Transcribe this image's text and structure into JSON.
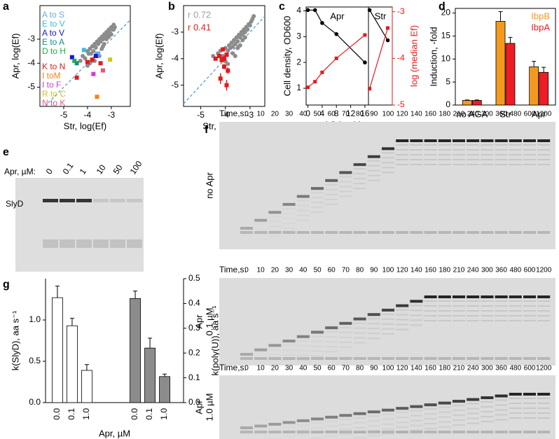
{
  "chart_data": [
    {
      "panel": "a",
      "type": "scatter",
      "xlabel": "Str, log(Ef)",
      "ylabel": "Apr, log(Ef)",
      "xlim": [
        -6,
        -2.2
      ],
      "ylim": [
        -5.8,
        -1.6
      ],
      "xticks": [
        -5,
        -4,
        -3
      ],
      "yticks": [
        -5,
        -4,
        -3
      ],
      "diagonal": true,
      "diagonal_color": "#5b9bd5",
      "points": {
        "color": "#8c8c8c",
        "x": [
          -4.3,
          -4.2,
          -4.1,
          -4.0,
          -3.95,
          -3.9,
          -3.85,
          -3.8,
          -3.75,
          -3.7,
          -3.65,
          -3.6,
          -3.55,
          -3.5,
          -3.45,
          -3.4,
          -3.35,
          -3.3,
          -3.25,
          -3.2,
          -3.15,
          -3.1,
          -3.05,
          -3.0,
          -2.95,
          -2.9,
          -2.85,
          -3.6,
          -3.5,
          -3.4,
          -3.3,
          -3.2,
          -3.8,
          -3.9,
          -4.0,
          -3.7,
          -3.1,
          -3.0,
          -2.9,
          -3.35
        ],
        "values": [
          -3.9,
          -3.7,
          -3.8,
          -3.5,
          -3.6,
          -3.4,
          -3.6,
          -3.3,
          -3.5,
          -3.2,
          -3.35,
          -3.1,
          -3.2,
          -3.0,
          -3.1,
          -2.9,
          -3.0,
          -2.8,
          -2.95,
          -2.7,
          -2.85,
          -2.6,
          -2.75,
          -2.5,
          -2.6,
          -2.4,
          -2.5,
          -3.6,
          -3.7,
          -3.4,
          -3.2,
          -3.0,
          -3.9,
          -4.0,
          -4.1,
          -3.9,
          -2.9,
          -2.8,
          -2.6,
          -3.3
        ]
      },
      "series": [
        {
          "name": "A to S",
          "color": "#6fa8dc",
          "x": [
            -3.55
          ],
          "values": [
            -3.6
          ]
        },
        {
          "name": "E to V",
          "color": "#35c0d8",
          "x": [
            -4.15
          ],
          "values": [
            -3.45
          ]
        },
        {
          "name": "A to V",
          "color": "#1515d8",
          "x": [
            -4.65,
            -3.65
          ],
          "values": [
            -3.75,
            -3.7
          ]
        },
        {
          "name": "E to A",
          "color": "#138c8c",
          "x": [
            -4.45
          ],
          "values": [
            -4.0
          ]
        },
        {
          "name": "D to H",
          "color": "#27a844",
          "x": [
            -4.55
          ],
          "values": [
            -3.9
          ]
        },
        {
          "name": "K to N",
          "color": "#e31a1c",
          "x": [
            -4.0,
            -3.8,
            -3.45,
            -4.45
          ],
          "values": [
            -3.95,
            -3.85,
            -4.0,
            -4.6
          ]
        },
        {
          "name": "I toM",
          "color": "#f5821f",
          "x": [
            -3.6
          ],
          "values": [
            -5.4
          ]
        },
        {
          "name": "I to F",
          "color": "#d63ad6",
          "x": [
            -3.75
          ],
          "values": [
            -4.45
          ]
        },
        {
          "name": "R to C",
          "color": "#c8c81e",
          "x": [
            -3.05
          ],
          "values": [
            -3.85
          ]
        },
        {
          "name": "N to K",
          "color": "#e8577a",
          "x": [
            -3.35
          ],
          "values": [
            -4.3
          ]
        }
      ]
    },
    {
      "panel": "b",
      "type": "scatter",
      "xlabel": "Str, log(Ef)",
      "ylabel": "Apr, log(Ef)",
      "xlim": [
        -5.7,
        -2.4
      ],
      "ylim": [
        -5.8,
        -2.0
      ],
      "xticks": [
        -5,
        -4,
        -3
      ],
      "yticks": [
        -5,
        -4,
        -3
      ],
      "diagonal": true,
      "diagonal_color": "#5b9bd5",
      "annotations": [
        {
          "text": "r 0.72",
          "color": "#a0a0a0"
        },
        {
          "text": "r 0.41",
          "color": "#e31a1c"
        }
      ],
      "points": {
        "color": "#8c8c8c",
        "x": [
          -4.5,
          -4.4,
          -4.3,
          -4.2,
          -4.1,
          -4.0,
          -3.9,
          -3.85,
          -3.8,
          -3.75,
          -3.7,
          -3.65,
          -3.6,
          -3.55,
          -3.5,
          -3.45,
          -3.4,
          -3.35,
          -3.3,
          -3.25,
          -3.2,
          -3.15,
          -3.1,
          -3.05,
          -3.0,
          -2.95,
          -2.9,
          -2.85,
          -3.7,
          -3.6,
          -3.5,
          -3.4,
          -3.3,
          -4.0,
          -3.9,
          -3.2
        ],
        "values": [
          -3.9,
          -4.0,
          -3.8,
          -3.7,
          -3.9,
          -3.6,
          -3.7,
          -3.5,
          -3.6,
          -3.4,
          -3.55,
          -3.3,
          -3.45,
          -3.2,
          -3.35,
          -3.1,
          -3.2,
          -3.0,
          -3.1,
          -2.9,
          -3.0,
          -2.8,
          -2.9,
          -2.7,
          -2.75,
          -2.6,
          -2.5,
          -2.4,
          -3.8,
          -3.9,
          -3.6,
          -3.5,
          -3.3,
          -4.1,
          -4.2,
          -3.2
        ]
      },
      "highlight": {
        "color": "#e31a1c",
        "x": [
          -4.25,
          -4.15,
          -4.05,
          -3.95,
          -4.4,
          -4.05,
          -3.9,
          -4.2,
          -3.95,
          -4.1
        ],
        "values": [
          -3.9,
          -4.05,
          -4.0,
          -3.85,
          -4.0,
          -4.3,
          -4.45,
          -4.75,
          -5.0,
          -3.65
        ],
        "errors": [
          0.08,
          0.1,
          0.1,
          0.08,
          0.05,
          0.1,
          0.12,
          0.2,
          0.2,
          0.08
        ]
      }
    },
    {
      "panel": "c",
      "type": "line",
      "xlabel": "AGA, µM",
      "ylabel": "Cell density, OD600",
      "y2label": "log (median Ef)",
      "ylim": [
        0.35,
        4.15
      ],
      "yticks": [
        1,
        2,
        3,
        4
      ],
      "y2lim": [
        -5,
        -2.9
      ],
      "y2ticks": [
        -5,
        -4,
        -3
      ],
      "subplots": [
        {
          "title": "Apr",
          "xlim": [
            -0.5,
            17
          ],
          "xticks": [
            0,
            4,
            8,
            12,
            16
          ],
          "x": [
            0,
            2,
            4,
            8,
            16
          ],
          "series": [
            {
              "color": "#000000",
              "values": [
                4.03,
                4.03,
                3.53,
                3.1,
                2.0
              ]
            },
            {
              "color": "#e31a1c",
              "axis": "y2",
              "values": [
                -4.62,
                -4.5,
                -4.3,
                -4.0,
                -3.5
              ]
            }
          ]
        },
        {
          "title": "Str",
          "xlim": [
            -0.5,
            10
          ],
          "x": [
            0,
            8
          ],
          "series": [
            {
              "color": "#000000",
              "values": [
                4.03,
                2.86
              ]
            },
            {
              "color": "#e31a1c",
              "axis": "y2",
              "values": [
                -4.65,
                -3.35
              ]
            }
          ]
        }
      ]
    },
    {
      "panel": "d",
      "type": "bar",
      "ylabel": "Induction, -fold",
      "categories": [
        "no AGA",
        "Str",
        "Apr"
      ],
      "ylim": [
        0,
        21
      ],
      "yticks": [
        0,
        5,
        10,
        15,
        20
      ],
      "legend": "top-right",
      "series": [
        {
          "name": "IbpB",
          "color": "#f39a1e",
          "values": [
            1,
            18.2,
            8.3
          ],
          "errors": [
            0.1,
            2.1,
            1.2
          ]
        },
        {
          "name": "IbpA",
          "color": "#ee1c24",
          "values": [
            1,
            13.4,
            7.1
          ],
          "errors": [
            0.1,
            1.3,
            1.1
          ]
        }
      ]
    },
    {
      "panel": "g",
      "type": "bar",
      "xlabel": "Apr, µM",
      "ylabel": "k(SlyD), aa s⁻¹",
      "y2label": "k(poly(U)), aa s⁻¹",
      "ylim": [
        0,
        1.5
      ],
      "yticks": [
        {
          "value": 0,
          "label": "0.0"
        },
        0.5,
        {
          "value": 1,
          "label": "1.0"
        }
      ],
      "y2lim": [
        0,
        0.5
      ],
      "y2ticks": [
        {
          "value": 0,
          "label": "0.0"
        },
        0.1,
        0.2,
        0.3,
        0.4,
        0.5
      ],
      "groups": [
        {
          "color": "#ffffff",
          "categories": [
            "0.0",
            "0.1",
            "1.0"
          ],
          "values": [
            1.27,
            0.93,
            0.39
          ],
          "errors": [
            0.14,
            0.09,
            0.07
          ]
        },
        {
          "color": "#8c8c8c",
          "axis": "y2",
          "categories": [
            "0.0",
            "0.1",
            "1.0"
          ],
          "values": [
            0.42,
            0.22,
            0.105
          ],
          "errors": [
            0.03,
            0.04,
            0.01
          ]
        }
      ]
    }
  ],
  "gels": [
    {
      "panel": "e",
      "lane_label": "Apr, µM:",
      "lanes": [
        0,
        0.1,
        1,
        10,
        50,
        100
      ],
      "band_label": "SlyD"
    },
    {
      "panel": "f",
      "time_label": "Time,s:",
      "times": [
        0,
        10,
        20,
        30,
        40,
        50,
        60,
        70,
        80,
        90,
        100,
        120,
        140,
        160,
        180,
        210,
        240,
        300,
        360,
        480,
        600,
        1200
      ],
      "rows": [
        {
          "label": [
            "no Apr"
          ]
        },
        {
          "label": [
            "Apr",
            "0.1 µM"
          ]
        },
        {
          "label": [
            "Apr",
            "1.0 µM"
          ]
        }
      ]
    }
  ]
}
